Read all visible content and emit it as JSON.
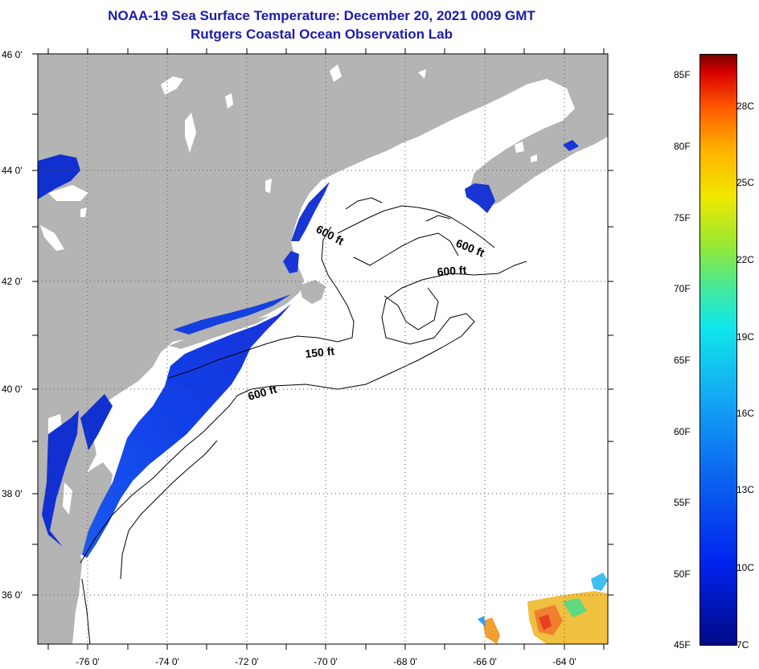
{
  "title": {
    "line1": "NOAA-19 Sea Surface Temperature:  December 20, 2021 0009 GMT",
    "line2": "Rutgers Coastal Ocean Observation Lab"
  },
  "latitude_labels": [
    "46 0'",
    "44 0'",
    "42 0'",
    "40 0'",
    "38 0'",
    "36 0'"
  ],
  "longitude_labels": [
    "-76 0'",
    "-74 0'",
    "-72 0'",
    "-70 0'",
    "-68 0'",
    "-66 0'",
    "-64 0'"
  ],
  "depth_labels": [
    "600 ft",
    "600 ft",
    "600 ft",
    "150 ft",
    "600 ft"
  ],
  "colorbar": {
    "fahrenheit": [
      "85F",
      "80F",
      "75F",
      "70F",
      "65F",
      "60F",
      "55F",
      "50F",
      "45F"
    ],
    "celsius": [
      "28C",
      "25C",
      "22C",
      "19C",
      "16C",
      "13C",
      "10C",
      "7C"
    ]
  },
  "colors": {
    "land": "#b4b4b4",
    "title": "#1c1caa",
    "cold_water": "#1540e0"
  }
}
